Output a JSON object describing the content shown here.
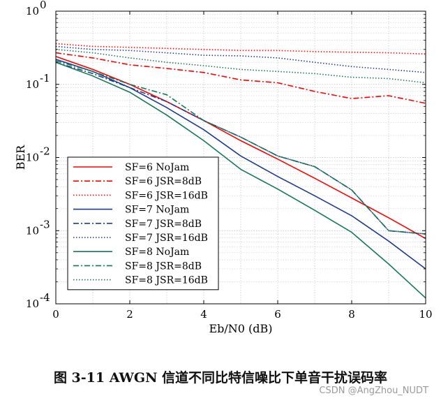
{
  "chart_data": {
    "type": "line",
    "title": "",
    "xlabel": "Eb/N0 (dB)",
    "ylabel": "BER",
    "yscale": "log",
    "xlim": [
      0,
      10
    ],
    "ylim": [
      0.0001,
      1
    ],
    "grid": true,
    "legend_position": "bottom-left",
    "x_ticks": [
      "0",
      "2",
      "4",
      "6",
      "8",
      "10"
    ],
    "y_ticks": [
      {
        "base": "10",
        "exp": "0",
        "value": 1
      },
      {
        "base": "10",
        "exp": "-1",
        "value": 0.1
      },
      {
        "base": "10",
        "exp": "-2",
        "value": 0.01
      },
      {
        "base": "10",
        "exp": "-3",
        "value": 0.001
      },
      {
        "base": "10",
        "exp": "-4",
        "value": 0.0001
      }
    ],
    "x": [
      0,
      1,
      2,
      3,
      4,
      5,
      6,
      7,
      8,
      9,
      10
    ],
    "series": [
      {
        "name": "SF=6 NoJam",
        "color": "#ff0000",
        "dash": "solid",
        "values": [
          0.24,
          0.16,
          0.1,
          0.058,
          0.032,
          0.017,
          0.0095,
          0.0052,
          0.0028,
          0.0015,
          0.00078
        ]
      },
      {
        "name": "SF=6 JSR=8dB",
        "color": "#ff0000",
        "dash": "dashdot",
        "values": [
          0.27,
          0.23,
          0.185,
          0.165,
          0.145,
          0.115,
          0.105,
          0.08,
          0.064,
          0.07,
          0.055
        ]
      },
      {
        "name": "SF=6 JSR=16dB",
        "color": "#ff0000",
        "dash": "dotted",
        "values": [
          0.36,
          0.33,
          0.32,
          0.31,
          0.3,
          0.29,
          0.29,
          0.28,
          0.275,
          0.27,
          0.26
        ]
      },
      {
        "name": "SF=7 NoJam",
        "color": "#1f3d8f",
        "dash": "solid",
        "values": [
          0.22,
          0.15,
          0.09,
          0.048,
          0.024,
          0.0105,
          0.0055,
          0.003,
          0.0016,
          0.00072,
          0.0003
        ]
      },
      {
        "name": "SF=7 JSR=8dB",
        "color": "#1f3d8f",
        "dash": "dashdot",
        "values": [
          0.2,
          0.14,
          0.09,
          0.058,
          0.032,
          0.019,
          0.0105,
          0.0075,
          0.0036,
          0.001,
          0.0009
        ]
      },
      {
        "name": "SF=7 JSR=16dB",
        "color": "#1f3d8f",
        "dash": "dotted",
        "values": [
          0.33,
          0.3,
          0.29,
          0.27,
          0.25,
          0.245,
          0.23,
          0.2,
          0.175,
          0.16,
          0.145
        ]
      },
      {
        "name": "SF=8 NoJam",
        "color": "#137a55",
        "dash": "solid",
        "values": [
          0.2,
          0.13,
          0.078,
          0.038,
          0.017,
          0.0069,
          0.0037,
          0.0019,
          0.00095,
          0.00035,
          0.00012
        ]
      },
      {
        "name": "SF=8 JSR=8dB",
        "color": "#137a55",
        "dash": "dashdot",
        "values": [
          0.21,
          0.15,
          0.1,
          0.072,
          0.032,
          0.019,
          0.0105,
          0.0075,
          0.0036,
          0.001,
          0.0009
        ]
      },
      {
        "name": "SF=8 JSR=16dB",
        "color": "#137a55",
        "dash": "dotted",
        "values": [
          0.3,
          0.27,
          0.23,
          0.2,
          0.18,
          0.16,
          0.15,
          0.14,
          0.125,
          0.12,
          0.105
        ]
      }
    ]
  },
  "caption": "图  3-11 AWGN 信道不同比特信噪比下单音干扰误码率",
  "watermark": "CSDN @AngZhou_NUDT"
}
